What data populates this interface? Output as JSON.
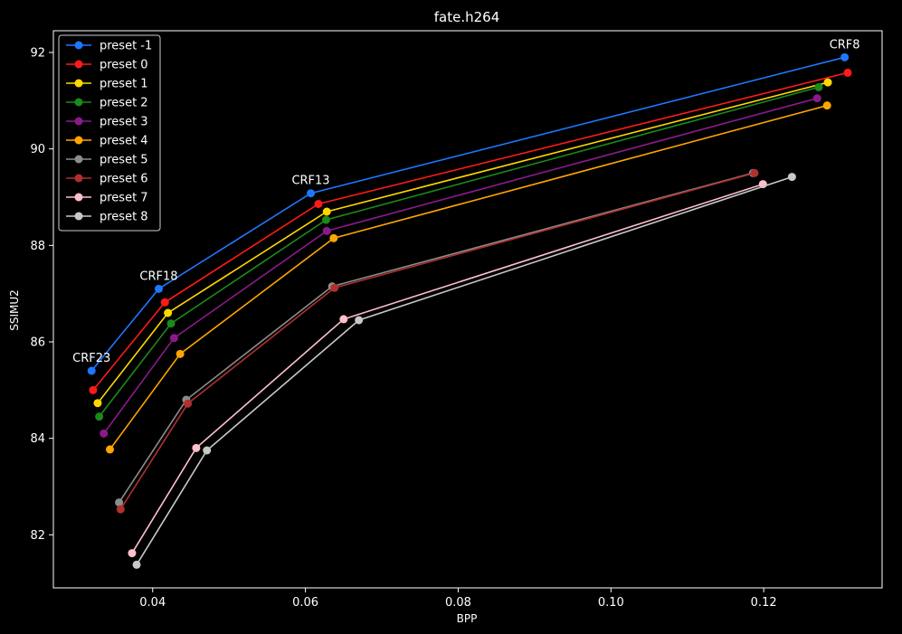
{
  "chart_data": {
    "type": "line",
    "title": "fate.h264",
    "xlabel": "BPP",
    "ylabel": "SSIMU2",
    "xlim": [
      0.027,
      0.1355
    ],
    "ylim": [
      80.9,
      92.45
    ],
    "xticks": [
      0.04,
      0.06,
      0.08,
      0.1,
      0.12
    ],
    "xtick_labels": [
      "0.04",
      "0.06",
      "0.08",
      "0.10",
      "0.12"
    ],
    "yticks": [
      82,
      84,
      86,
      88,
      90,
      92
    ],
    "ytick_labels": [
      "82",
      "84",
      "86",
      "88",
      "90",
      "92"
    ],
    "grid": false,
    "legend_position": "top-left",
    "series": [
      {
        "name": "preset -1",
        "color": "#1f77ff",
        "x": [
          0.032,
          0.0408,
          0.0607,
          0.1306
        ],
        "y": [
          85.4,
          87.1,
          89.08,
          91.9
        ]
      },
      {
        "name": "preset 0",
        "color": "#ff1a1a",
        "x": [
          0.0322,
          0.0416,
          0.0617,
          0.131
        ],
        "y": [
          85.0,
          86.82,
          88.86,
          91.58
        ]
      },
      {
        "name": "preset 1",
        "color": "#ffd700",
        "x": [
          0.0328,
          0.042,
          0.0628,
          0.1284
        ],
        "y": [
          84.73,
          86.6,
          88.7,
          91.38
        ]
      },
      {
        "name": "preset 2",
        "color": "#1a8a1a",
        "x": [
          0.033,
          0.0424,
          0.0627,
          0.1272
        ],
        "y": [
          84.45,
          86.38,
          88.53,
          91.28
        ]
      },
      {
        "name": "preset 3",
        "color": "#8a1a8a",
        "x": [
          0.0336,
          0.0428,
          0.0628,
          0.127
        ],
        "y": [
          84.1,
          86.08,
          88.3,
          91.05
        ]
      },
      {
        "name": "preset 4",
        "color": "#ffa500",
        "x": [
          0.0344,
          0.0436,
          0.0637,
          0.1283
        ],
        "y": [
          83.77,
          85.75,
          88.15,
          90.9
        ]
      },
      {
        "name": "preset 5",
        "color": "#8c8c8c",
        "x": [
          0.0356,
          0.0444,
          0.0635,
          0.1186
        ],
        "y": [
          82.67,
          84.8,
          87.15,
          89.5
        ]
      },
      {
        "name": "preset 6",
        "color": "#b03030",
        "x": [
          0.0358,
          0.0446,
          0.0638,
          0.1188
        ],
        "y": [
          82.53,
          84.72,
          87.12,
          89.5
        ]
      },
      {
        "name": "preset 7",
        "color": "#ffc0cb",
        "x": [
          0.0373,
          0.0457,
          0.065,
          0.1199
        ],
        "y": [
          81.62,
          83.8,
          86.47,
          89.27
        ]
      },
      {
        "name": "preset 8",
        "color": "#c8c8c8",
        "x": [
          0.0379,
          0.0471,
          0.067,
          0.1237
        ],
        "y": [
          81.38,
          83.75,
          86.45,
          89.42
        ]
      }
    ],
    "annotations": [
      {
        "text": "CRF23",
        "x": 0.032,
        "y": 85.4
      },
      {
        "text": "CRF18",
        "x": 0.0408,
        "y": 87.1
      },
      {
        "text": "CRF13",
        "x": 0.0607,
        "y": 89.08
      },
      {
        "text": "CRF8",
        "x": 0.1306,
        "y": 91.9
      }
    ]
  }
}
